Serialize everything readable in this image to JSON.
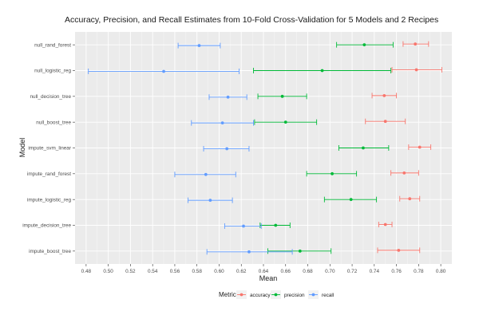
{
  "chart_data": {
    "type": "dot-errorbar",
    "title": "Accuracy, Precision, and Recall Estimates from 10-Fold Cross-Validation for 5 Models and 2 Recipes",
    "xlabel": "Mean",
    "ylabel": "Model",
    "xlim": [
      0.47,
      0.81
    ],
    "xticks": [
      "0.48",
      "0.50",
      "0.52",
      "0.54",
      "0.56",
      "0.58",
      "0.60",
      "0.62",
      "0.64",
      "0.66",
      "0.68",
      "0.70",
      "0.72",
      "0.74",
      "0.76",
      "0.78",
      "0.80"
    ],
    "categories": [
      "null_rand_forest",
      "null_logistic_reg",
      "null_decision_tree",
      "null_boost_tree",
      "impute_svm_linear",
      "impute_rand_forest",
      "impute_logistic_reg",
      "impute_decision_tree",
      "impute_boost_tree"
    ],
    "legend": {
      "title": "Metric",
      "position": "bottom"
    },
    "grid": true,
    "background": "#ebebeb",
    "series": [
      {
        "name": "accuracy",
        "color": "#f8766d",
        "offset": 0.25,
        "points": [
          {
            "mean": 0.777,
            "lo": 0.766,
            "hi": 0.789
          },
          {
            "mean": 0.778,
            "lo": 0.756,
            "hi": 0.801
          },
          {
            "mean": 0.749,
            "lo": 0.738,
            "hi": 0.76
          },
          {
            "mean": 0.75,
            "lo": 0.732,
            "hi": 0.768
          },
          {
            "mean": 0.781,
            "lo": 0.771,
            "hi": 0.791
          },
          {
            "mean": 0.767,
            "lo": 0.755,
            "hi": 0.78
          },
          {
            "mean": 0.772,
            "lo": 0.763,
            "hi": 0.781
          },
          {
            "mean": 0.75,
            "lo": 0.744,
            "hi": 0.756
          },
          {
            "mean": 0.762,
            "lo": 0.743,
            "hi": 0.781
          }
        ]
      },
      {
        "name": "precision",
        "color": "#00ba38",
        "offset": 0,
        "points": [
          {
            "mean": 0.731,
            "lo": 0.706,
            "hi": 0.757
          },
          {
            "mean": 0.693,
            "lo": 0.631,
            "hi": 0.755
          },
          {
            "mean": 0.657,
            "lo": 0.635,
            "hi": 0.679
          },
          {
            "mean": 0.66,
            "lo": 0.632,
            "hi": 0.688
          },
          {
            "mean": 0.73,
            "lo": 0.708,
            "hi": 0.753
          },
          {
            "mean": 0.702,
            "lo": 0.679,
            "hi": 0.724
          },
          {
            "mean": 0.719,
            "lo": 0.695,
            "hi": 0.742
          },
          {
            "mean": 0.651,
            "lo": 0.637,
            "hi": 0.664
          },
          {
            "mean": 0.673,
            "lo": 0.644,
            "hi": 0.701
          }
        ]
      },
      {
        "name": "recall",
        "color": "#619cff",
        "offset": -0.25,
        "points": [
          {
            "mean": 0.582,
            "lo": 0.563,
            "hi": 0.601
          },
          {
            "mean": 0.55,
            "lo": 0.482,
            "hi": 0.618
          },
          {
            "mean": 0.608,
            "lo": 0.591,
            "hi": 0.625
          },
          {
            "mean": 0.603,
            "lo": 0.575,
            "hi": 0.631
          },
          {
            "mean": 0.607,
            "lo": 0.586,
            "hi": 0.627
          },
          {
            "mean": 0.588,
            "lo": 0.56,
            "hi": 0.615
          },
          {
            "mean": 0.592,
            "lo": 0.572,
            "hi": 0.612
          },
          {
            "mean": 0.622,
            "lo": 0.605,
            "hi": 0.638
          },
          {
            "mean": 0.627,
            "lo": 0.589,
            "hi": 0.666
          }
        ]
      }
    ]
  }
}
